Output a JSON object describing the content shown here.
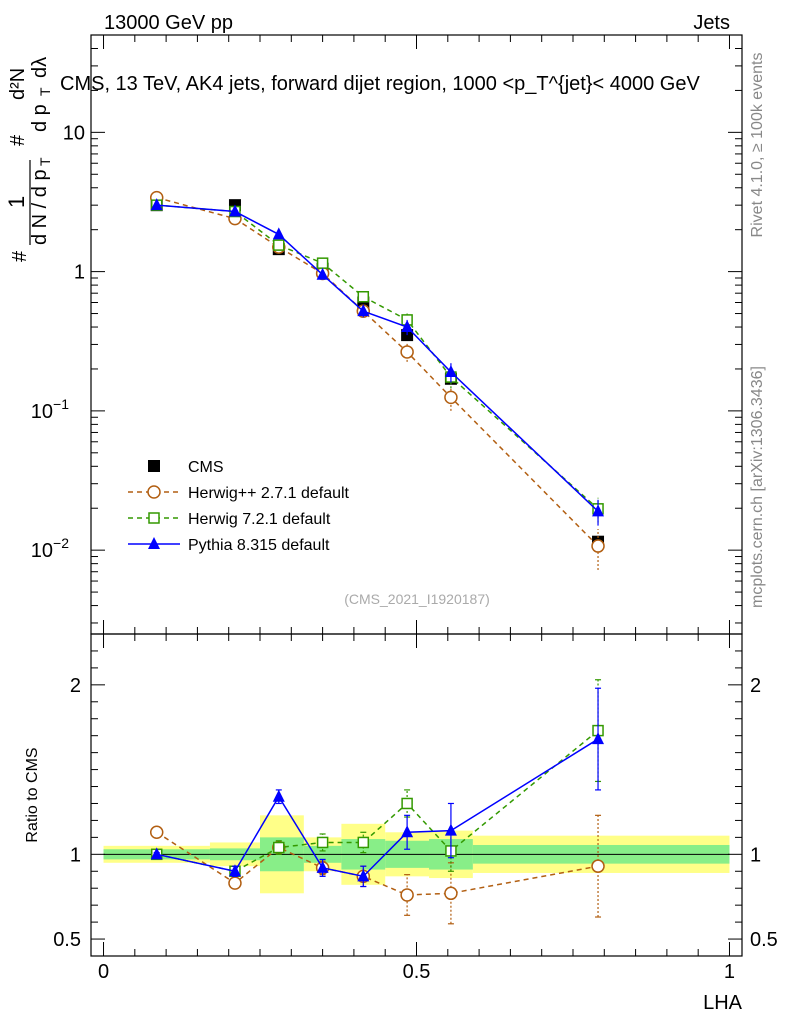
{
  "header": {
    "left": "13000 GeV pp",
    "right": "Jets"
  },
  "side": {
    "rivet": "Rivet 4.1.0, ≥ 100k events",
    "mcplots": "mcplots.cern.ch [arXiv:1306.3436]"
  },
  "chart_data": [
    {
      "type": "scatter",
      "panel": "main",
      "title": "CMS, 13 TeV, AK4 jets, forward dijet region, 1000 <p_T^{jet}< 4000 GeV",
      "ylabel": "1/dN/dpT · d²N/dpT dλ",
      "ylabel_parts": [
        "#",
        "1",
        "d N / d p",
        "T",
        "#",
        "d p",
        "T",
        "dλ",
        "d²N"
      ],
      "yscale": "log",
      "ylim": [
        0.0025,
        50
      ],
      "xlim": [
        -0.02,
        1.02
      ],
      "yticks": [
        {
          "value": 0.01,
          "base": "10",
          "exp": "−2"
        },
        {
          "value": 0.1,
          "base": "10",
          "exp": "−1"
        },
        {
          "value": 1,
          "base": "1",
          "exp": ""
        },
        {
          "value": 10,
          "base": "10",
          "exp": ""
        }
      ],
      "watermark": "(CMS_2021_I1920187)",
      "legend_position": "lower-left",
      "series": [
        {
          "name": "CMS",
          "color": "#000000",
          "marker": "filled-square",
          "line": "none",
          "x": [
            0.085,
            0.21,
            0.28,
            0.35,
            0.415,
            0.485,
            0.555,
            0.79
          ],
          "values": [
            3.0,
            3.0,
            1.45,
            1.05,
            0.6,
            0.35,
            0.17,
            0.0115
          ]
        },
        {
          "name": "Herwig++ 2.7.1 default",
          "color": "#b25f12",
          "marker": "open-circle",
          "line": "dashed",
          "x": [
            0.085,
            0.21,
            0.28,
            0.35,
            0.415,
            0.485,
            0.555,
            0.79
          ],
          "values": [
            3.4,
            2.4,
            1.5,
            0.97,
            0.52,
            0.265,
            0.125,
            0.0107
          ],
          "err_low": [
            0.1,
            0.12,
            0.08,
            0.06,
            0.05,
            0.04,
            0.025,
            0.0035
          ],
          "err_high": [
            0.1,
            0.12,
            0.08,
            0.06,
            0.05,
            0.04,
            0.025,
            0.0035
          ]
        },
        {
          "name": "Herwig 7.2.1 default",
          "color": "#339900",
          "marker": "open-square",
          "line": "dashed",
          "x": [
            0.085,
            0.21,
            0.28,
            0.35,
            0.415,
            0.485,
            0.555,
            0.79
          ],
          "values": [
            3.0,
            2.7,
            1.55,
            1.15,
            0.66,
            0.45,
            0.175,
            0.0198
          ],
          "err_low": [
            0.1,
            0.1,
            0.08,
            0.06,
            0.05,
            0.05,
            0.03,
            0.004
          ],
          "err_high": [
            0.1,
            0.1,
            0.08,
            0.06,
            0.05,
            0.05,
            0.03,
            0.004
          ]
        },
        {
          "name": "Pythia 8.315 default",
          "color": "#0000ff",
          "marker": "filled-triangle",
          "line": "solid",
          "x": [
            0.085,
            0.21,
            0.28,
            0.35,
            0.415,
            0.485,
            0.555,
            0.79
          ],
          "values": [
            3.0,
            2.7,
            1.85,
            0.95,
            0.52,
            0.4,
            0.19,
            0.019
          ],
          "err_low": [
            0.1,
            0.1,
            0.08,
            0.06,
            0.05,
            0.05,
            0.03,
            0.004
          ],
          "err_high": [
            0.1,
            0.1,
            0.08,
            0.06,
            0.05,
            0.05,
            0.03,
            0.004
          ]
        }
      ]
    },
    {
      "type": "scatter",
      "panel": "ratio",
      "ylabel": "Ratio to CMS",
      "xlabel": "LHA",
      "ylim": [
        0.4,
        2.3
      ],
      "xlim": [
        -0.02,
        1.02
      ],
      "yticks": [
        0.5,
        1,
        2
      ],
      "ytick_labels": [
        "0.5",
        "1",
        "2"
      ],
      "xticks": [
        0,
        0.5,
        1
      ],
      "xtick_labels": [
        "0",
        "0.5",
        "1"
      ],
      "reference_line": 1,
      "bands": [
        {
          "x0": 0.0,
          "x1": 0.17,
          "yellow": [
            0.95,
            1.05
          ],
          "green": [
            0.97,
            1.03
          ]
        },
        {
          "x0": 0.17,
          "x1": 0.25,
          "yellow": [
            0.93,
            1.07
          ],
          "green": [
            0.965,
            1.035
          ]
        },
        {
          "x0": 0.25,
          "x1": 0.32,
          "yellow": [
            0.77,
            1.23
          ],
          "green": [
            0.9,
            1.1
          ]
        },
        {
          "x0": 0.32,
          "x1": 0.38,
          "yellow": [
            0.9,
            1.1
          ],
          "green": [
            0.95,
            1.05
          ]
        },
        {
          "x0": 0.38,
          "x1": 0.45,
          "yellow": [
            0.82,
            1.18
          ],
          "green": [
            0.91,
            1.09
          ]
        },
        {
          "x0": 0.45,
          "x1": 0.52,
          "yellow": [
            0.87,
            1.13
          ],
          "green": [
            0.92,
            1.08
          ]
        },
        {
          "x0": 0.52,
          "x1": 0.59,
          "yellow": [
            0.86,
            1.14
          ],
          "green": [
            0.91,
            1.09
          ]
        },
        {
          "x0": 0.59,
          "x1": 1.0,
          "yellow": [
            0.89,
            1.11
          ],
          "green": [
            0.945,
            1.055
          ]
        }
      ],
      "series": [
        {
          "name": "Herwig++ 2.7.1 default",
          "color": "#b25f12",
          "marker": "open-circle",
          "line": "dashed",
          "x": [
            0.085,
            0.21,
            0.28,
            0.35,
            0.415,
            0.485,
            0.555,
            0.79
          ],
          "values": [
            1.13,
            0.83,
            1.04,
            0.92,
            0.87,
            0.76,
            0.77,
            0.93
          ],
          "err_low": [
            0.01,
            0.03,
            0.03,
            0.04,
            0.06,
            0.12,
            0.18,
            0.3
          ],
          "err_high": [
            0.01,
            0.03,
            0.03,
            0.04,
            0.06,
            0.12,
            0.18,
            0.3
          ]
        },
        {
          "name": "Herwig 7.2.1 default",
          "color": "#339900",
          "marker": "open-square",
          "line": "dashed",
          "x": [
            0.085,
            0.21,
            0.28,
            0.35,
            0.415,
            0.485,
            0.555,
            0.79
          ],
          "values": [
            1.0,
            0.9,
            1.04,
            1.07,
            1.07,
            1.3,
            1.02,
            1.73
          ],
          "err_low": [
            0.01,
            0.03,
            0.04,
            0.05,
            0.06,
            0.08,
            0.12,
            0.3
          ],
          "err_high": [
            0.01,
            0.03,
            0.04,
            0.05,
            0.06,
            0.08,
            0.12,
            0.3
          ]
        },
        {
          "name": "Pythia 8.315 default",
          "color": "#0000ff",
          "marker": "filled-triangle",
          "line": "solid",
          "x": [
            0.085,
            0.21,
            0.28,
            0.35,
            0.415,
            0.485,
            0.555,
            0.79
          ],
          "values": [
            1.0,
            0.9,
            1.34,
            0.92,
            0.87,
            1.13,
            1.14,
            1.68
          ],
          "err_low": [
            0.01,
            0.03,
            0.04,
            0.05,
            0.06,
            0.1,
            0.16,
            0.3
          ],
          "err_high": [
            0.01,
            0.03,
            0.04,
            0.05,
            0.06,
            0.1,
            0.16,
            0.3
          ]
        }
      ]
    }
  ]
}
